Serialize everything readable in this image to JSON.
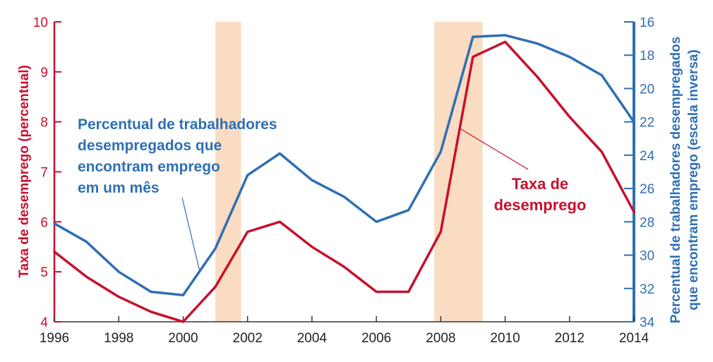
{
  "chart_data": {
    "type": "line",
    "ylabel": "Taxa de desemprego (percentual)",
    "y2label_line1": "Percentual de trabalhadores desempregados",
    "y2label_line2": "que encontram emprego (escala inversa)",
    "x_ticks": [
      "1996",
      "1998",
      "2000",
      "2002",
      "2004",
      "2006",
      "2008",
      "2010",
      "2012",
      "2014"
    ],
    "y_ticks": [
      "4",
      "5",
      "6",
      "7",
      "8",
      "9",
      "10"
    ],
    "y2_ticks": [
      "16",
      "18",
      "20",
      "22",
      "24",
      "26",
      "28",
      "30",
      "32",
      "34"
    ],
    "xlim": [
      1996,
      2014
    ],
    "ylim": [
      4,
      10
    ],
    "y2lim": [
      34,
      16
    ],
    "y2_inverted": true,
    "grid": false,
    "recessions": [
      [
        2001.0,
        2001.8
      ],
      [
        2007.8,
        2009.3
      ]
    ],
    "series": [
      {
        "name": "Taxa de desemprego",
        "axis": "left",
        "color": "#c8102e",
        "x": [
          1996,
          1997,
          1998,
          1999,
          2000,
          2001,
          2002,
          2003,
          2004,
          2005,
          2006,
          2007,
          2008,
          2009,
          2010,
          2011,
          2012,
          2013,
          2014
        ],
        "values": [
          5.4,
          4.9,
          4.5,
          4.2,
          4.0,
          4.7,
          5.8,
          6.0,
          5.5,
          5.1,
          4.6,
          4.6,
          5.8,
          9.3,
          9.6,
          8.9,
          8.1,
          7.4,
          6.2
        ]
      },
      {
        "name": "Percentual de trabalhadores desempregados que encontram emprego em um mês",
        "axis": "right",
        "color": "#2f6fb3",
        "x": [
          1996,
          1997,
          1998,
          1999,
          2000,
          2001,
          2002,
          2003,
          2004,
          2005,
          2006,
          2007,
          2008,
          2009,
          2010,
          2011,
          2012,
          2013,
          2014
        ],
        "values": [
          28.1,
          29.2,
          31.0,
          32.2,
          32.4,
          29.6,
          25.2,
          23.9,
          25.5,
          26.5,
          28.0,
          27.3,
          23.8,
          16.9,
          16.8,
          17.3,
          18.1,
          19.2,
          22.0
        ]
      }
    ],
    "annotations": {
      "blue_label": [
        "Percentual de trabalhadores",
        "desempregados que",
        "encontram emprego",
        "em um mês"
      ],
      "red_label": [
        "Taxa de",
        "desemprego"
      ]
    }
  },
  "colors": {
    "left_axis": "#c8102e",
    "right_axis": "#2f6fb3",
    "recession_band": "#fadcc3"
  }
}
